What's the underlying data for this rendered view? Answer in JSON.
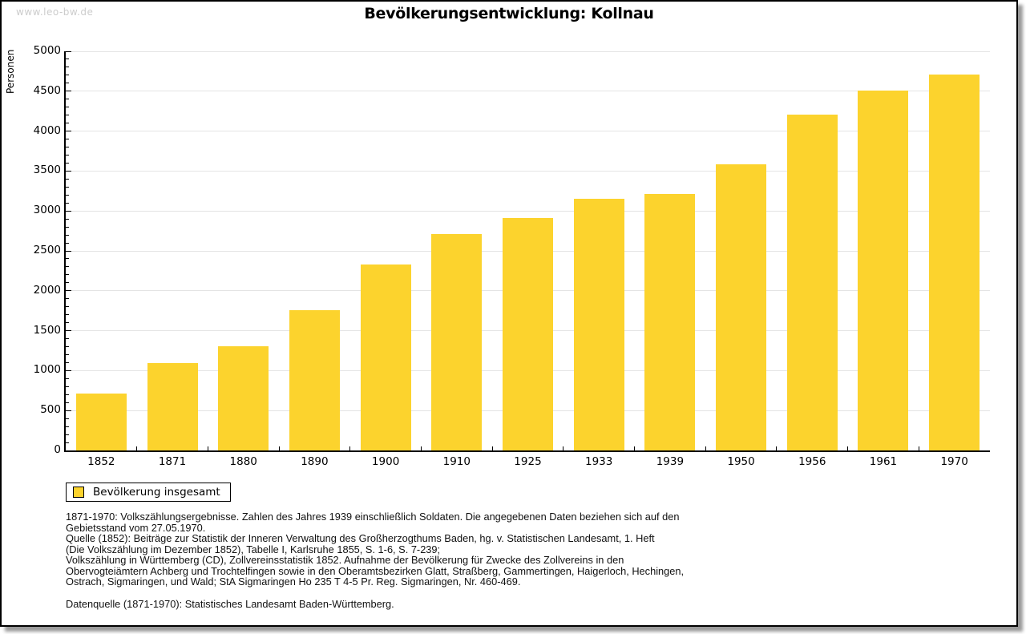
{
  "page": {
    "watermark": "www.leo-bw.de",
    "title": "Bevölkerungsentwicklung: Kollnau"
  },
  "chart_data": {
    "type": "bar",
    "title": "Bevölkerungsentwicklung: Kollnau",
    "categories": [
      "1852",
      "1871",
      "1880",
      "1890",
      "1900",
      "1910",
      "1925",
      "1933",
      "1939",
      "1950",
      "1956",
      "1961",
      "1970"
    ],
    "values": [
      715,
      1095,
      1310,
      1760,
      2330,
      2715,
      2910,
      3155,
      3215,
      3580,
      4210,
      4505,
      4705
    ],
    "xlabel": "",
    "ylabel": "Personen",
    "ylim": [
      0,
      5000
    ],
    "ytick_major": 500,
    "ytick_minor": 100,
    "grid": "horizontal",
    "bar_color": "#fcd32d",
    "grid_color": "#e4e4e4",
    "legend": {
      "label": "Bevölkerung insgesamt",
      "position": "bottom-left",
      "swatch_color": "#fcd32d"
    }
  },
  "footnotes": {
    "lines": [
      "1871-1970: Volkszählungsergebnisse. Zahlen des Jahres 1939 einschließlich Soldaten. Die angegebenen Daten beziehen sich auf den",
      "Gebietsstand vom 27.05.1970.",
      "Quelle (1852): Beiträge zur Statistik der Inneren Verwaltung des Großherzogthums Baden, hg. v. Statistischen Landesamt, 1. Heft",
      "(Die Volkszählung im Dezember 1852), Tabelle I, Karlsruhe 1855, S. 1-6, S. 7-239;",
      "Volkszählung in Württemberg (CD), Zollvereinsstatistik 1852. Aufnahme der Bevölkerung für Zwecke des Zollvereins in den",
      "Obervogteiämtern Achberg und Trochtelfingen sowie in den Oberamtsbezirken Glatt, Straßberg, Gammertingen, Haigerloch, Hechingen,",
      "Ostrach, Sigmaringen, und Wald; StA Sigmaringen Ho 235 T 4-5 Pr. Reg. Sigmaringen, Nr. 460-469."
    ],
    "datasource": "Datenquelle (1871-1970): Statistisches Landesamt Baden-Württemberg."
  }
}
